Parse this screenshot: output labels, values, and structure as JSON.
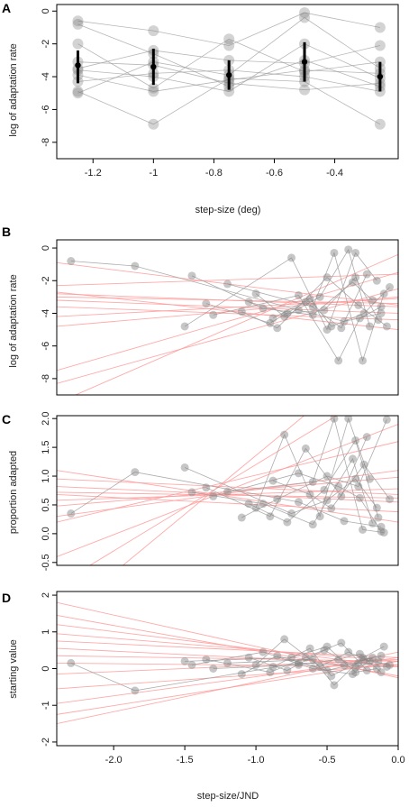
{
  "chart_data": [
    {
      "panel": "A",
      "type": "scatter",
      "xlabel": "step-size (deg)",
      "ylabel": "log of adaptation rate",
      "xlim": [
        -1.32,
        -0.19
      ],
      "ylim": [
        -9.0,
        0.4
      ],
      "xticks": [
        -1.2,
        -1.0,
        -0.8,
        -0.6,
        -0.4
      ],
      "yticks": [
        0,
        -2,
        -4,
        -6,
        -8
      ],
      "x_levels": [
        -1.25,
        -1.0,
        -0.75,
        -0.5,
        -0.25
      ],
      "subjects": [
        [
          -0.6,
          -1.2,
          -2.1,
          -0.1,
          -1.0
        ],
        [
          -3.5,
          -2.4,
          -3.0,
          -3.2,
          -2.1
        ],
        [
          -4.9,
          -6.9,
          -4.1,
          -4.3,
          -6.9
        ],
        [
          -2.0,
          -4.7,
          -1.7,
          -3.7,
          -3.1
        ],
        [
          -3.1,
          -3.3,
          -4.4,
          -4.8,
          -4.4
        ],
        [
          -4.3,
          -3.8,
          -3.6,
          -4.0,
          -4.9
        ],
        [
          -3.6,
          -4.0,
          -4.9,
          -2.0,
          -4.1
        ],
        [
          -5.0,
          -3.1,
          -3.9,
          -0.4,
          -3.5
        ],
        [
          -0.8,
          -2.6,
          -4.6,
          -3.0,
          -4.6
        ],
        [
          -3.9,
          -4.9,
          -4.2,
          -3.6,
          -3.8
        ]
      ],
      "means": [
        -3.3,
        -3.4,
        -3.9,
        -3.1,
        -4.0
      ],
      "ci": [
        [
          -4.4,
          -2.4
        ],
        [
          -4.5,
          -2.3
        ],
        [
          -4.8,
          -3.0
        ],
        [
          -4.3,
          -1.9
        ],
        [
          -4.9,
          -3.1
        ]
      ]
    },
    {
      "panel": "B",
      "type": "scatter",
      "xlabel": "",
      "ylabel": "log of adaptation rate",
      "xlim": [
        -2.4,
        0.0
      ],
      "ylim": [
        -9.0,
        0.5
      ],
      "yticks": [
        0,
        -2,
        -4,
        -6,
        -8
      ],
      "subjects": [
        {
          "x": [
            -2.3,
            -1.85,
            -0.7,
            -0.38,
            -0.12
          ],
          "y": [
            -0.8,
            -1.1,
            -3.8,
            -4.5,
            -4.0
          ]
        },
        {
          "x": [
            -1.5,
            -0.75,
            -0.5,
            -0.3,
            -0.15
          ],
          "y": [
            -4.8,
            -0.6,
            -5.0,
            -0.3,
            -2.0
          ]
        },
        {
          "x": [
            -1.2,
            -0.6,
            -0.45,
            -0.25,
            -0.1
          ],
          "y": [
            -2.2,
            -3.6,
            -0.3,
            -6.9,
            -2.8
          ]
        },
        {
          "x": [
            -1.0,
            -0.8,
            -0.55,
            -0.35,
            -0.2
          ],
          "y": [
            -2.8,
            -4.2,
            -3.0,
            -0.1,
            -4.8
          ]
        },
        {
          "x": [
            -1.35,
            -0.9,
            -0.65,
            -0.4,
            -0.22
          ],
          "y": [
            -3.4,
            -4.6,
            -3.3,
            -4.9,
            -1.6
          ]
        },
        {
          "x": [
            -1.1,
            -0.85,
            -0.5,
            -0.28,
            -0.08
          ],
          "y": [
            -3.9,
            -4.9,
            -1.8,
            -3.5,
            -4.8
          ]
        },
        {
          "x": [
            -1.45,
            -0.95,
            -0.6,
            -0.32,
            -0.18
          ],
          "y": [
            -1.7,
            -3.7,
            -4.1,
            -2.1,
            -3.2
          ]
        },
        {
          "x": [
            -1.3,
            -0.7,
            -0.42,
            -0.27,
            -0.12
          ],
          "y": [
            -4.1,
            -2.9,
            -6.9,
            -4.3,
            -3.6
          ]
        },
        {
          "x": [
            -1.05,
            -0.78,
            -0.52,
            -0.3,
            -0.14
          ],
          "y": [
            -3.3,
            -4.0,
            -3.8,
            -1.8,
            -4.4
          ]
        },
        {
          "x": [
            -0.88,
            -0.62,
            -0.47,
            -0.24,
            -0.06
          ],
          "y": [
            -4.3,
            -3.1,
            -4.8,
            -4.0,
            -2.4
          ]
        }
      ],
      "fit_lines": [
        [
          -0.9,
          -3.5
        ],
        [
          -2.3,
          -1.6
        ],
        [
          -2.8,
          -3.6
        ],
        [
          -3.2,
          -4.0
        ],
        [
          -3.0,
          -3.4
        ],
        [
          -4.2,
          -3.1
        ],
        [
          -2.7,
          -5.0
        ],
        [
          -7.5,
          -1.5
        ],
        [
          -9.5,
          -0.4
        ],
        [
          -8.3,
          -2.5
        ],
        [
          -4.8,
          -3.0
        ],
        [
          -3.6,
          -4.4
        ]
      ]
    },
    {
      "panel": "C",
      "type": "scatter",
      "xlabel": "",
      "ylabel": "proportion adapted",
      "xlim": [
        -2.4,
        0.0
      ],
      "ylim": [
        -0.55,
        2.05
      ],
      "yticks": [
        2.0,
        1.5,
        1.0,
        0.5,
        0.0,
        -0.5
      ],
      "ytick_labels": [
        "2.0",
        "1.5",
        "1.0",
        "0.5",
        "0.0",
        "-0.5"
      ],
      "subjects": [
        {
          "x": [
            -2.3,
            -1.85,
            -0.7,
            -0.38,
            -0.12
          ],
          "y": [
            0.35,
            1.07,
            0.55,
            0.22,
            0.12
          ]
        },
        {
          "x": [
            -1.5,
            -0.75,
            -0.5,
            -0.3,
            -0.15
          ],
          "y": [
            1.15,
            0.35,
            0.58,
            0.95,
            0.45
          ]
        },
        {
          "x": [
            -1.2,
            -0.6,
            -0.45,
            -0.25,
            -0.1
          ],
          "y": [
            0.73,
            0.9,
            2.0,
            0.07,
            0.02
          ]
        },
        {
          "x": [
            -1.0,
            -0.8,
            -0.55,
            -0.35,
            -0.2
          ],
          "y": [
            0.45,
            1.72,
            0.3,
            2.0,
            0.95
          ]
        },
        {
          "x": [
            -1.35,
            -0.9,
            -0.65,
            -0.4,
            -0.22
          ],
          "y": [
            0.8,
            0.3,
            1.48,
            0.65,
            1.68
          ]
        },
        {
          "x": [
            -1.1,
            -0.85,
            -0.5,
            -0.28,
            -0.08
          ],
          "y": [
            0.28,
            0.6,
            1.0,
            0.82,
            1.98
          ]
        },
        {
          "x": [
            -1.45,
            -0.95,
            -0.6,
            -0.32,
            -0.18
          ],
          "y": [
            0.72,
            0.52,
            0.16,
            1.3,
            0.18
          ]
        },
        {
          "x": [
            -1.3,
            -0.7,
            -0.42,
            -0.27,
            -0.12
          ],
          "y": [
            0.65,
            1.05,
            0.82,
            0.62,
            0.04
          ]
        },
        {
          "x": [
            -1.05,
            -0.78,
            -0.52,
            -0.3,
            -0.14
          ],
          "y": [
            0.52,
            0.2,
            0.76,
            1.62,
            0.28
          ]
        },
        {
          "x": [
            -0.88,
            -0.62,
            -0.47,
            -0.24,
            -0.06
          ],
          "y": [
            0.92,
            0.68,
            0.44,
            1.2,
            0.6
          ]
        }
      ],
      "fit_lines": [
        [
          0.95,
          0.68
        ],
        [
          0.82,
          0.55
        ],
        [
          0.58,
          0.78
        ],
        [
          0.68,
          0.38
        ],
        [
          0.48,
          0.98
        ],
        [
          0.72,
          0.62
        ],
        [
          0.2,
          1.6
        ],
        [
          -0.9,
          2.7
        ],
        [
          -1.5,
          3.4
        ],
        [
          -0.4,
          1.9
        ],
        [
          1.1,
          0.2
        ],
        [
          0.3,
          1.1
        ]
      ]
    },
    {
      "panel": "D",
      "type": "scatter",
      "xlabel": "step-size/JND",
      "ylabel": "starting value",
      "xlim": [
        -2.4,
        0.0
      ],
      "ylim": [
        -2.1,
        2.1
      ],
      "xticks": [
        -2.0,
        -1.5,
        -1.0,
        -0.5,
        0.0
      ],
      "xtick_labels": [
        "-2.0",
        "-1.5",
        "-1.0",
        "-0.5",
        "0.0"
      ],
      "yticks": [
        2,
        1,
        0,
        -1,
        -2
      ],
      "subjects": [
        {
          "x": [
            -2.3,
            -1.85,
            -0.7,
            -0.38,
            -0.12
          ],
          "y": [
            0.15,
            -0.6,
            0.15,
            0.1,
            0.35
          ]
        },
        {
          "x": [
            -1.5,
            -0.75,
            -0.5,
            -0.3,
            -0.15
          ],
          "y": [
            0.2,
            0.3,
            0.6,
            -0.1,
            0.0
          ]
        },
        {
          "x": [
            -1.2,
            -0.6,
            -0.45,
            -0.25,
            -0.1
          ],
          "y": [
            0.15,
            0.25,
            -0.45,
            0.3,
            0.6
          ]
        },
        {
          "x": [
            -1.0,
            -0.8,
            -0.55,
            -0.35,
            -0.2
          ],
          "y": [
            0.1,
            0.8,
            0.05,
            0.45,
            0.2
          ]
        },
        {
          "x": [
            -1.35,
            -0.9,
            -0.65,
            -0.4,
            -0.22
          ],
          "y": [
            0.25,
            -0.1,
            0.3,
            0.7,
            -0.05
          ]
        },
        {
          "x": [
            -1.1,
            -0.85,
            -0.5,
            -0.28,
            -0.08
          ],
          "y": [
            -0.15,
            0.35,
            -0.05,
            0.15,
            0.05
          ]
        },
        {
          "x": [
            -1.45,
            -0.95,
            -0.6,
            -0.32,
            -0.18
          ],
          "y": [
            0.1,
            0.45,
            0.0,
            -0.15,
            0.3
          ]
        },
        {
          "x": [
            -1.3,
            -0.7,
            -0.42,
            -0.27,
            -0.12
          ],
          "y": [
            0.0,
            0.1,
            0.25,
            0.4,
            -0.1
          ]
        },
        {
          "x": [
            -1.05,
            -0.78,
            -0.52,
            -0.3,
            -0.14
          ],
          "y": [
            0.3,
            -0.05,
            0.5,
            0.05,
            0.2
          ]
        },
        {
          "x": [
            -0.88,
            -0.62,
            -0.47,
            -0.24,
            -0.06
          ],
          "y": [
            0.05,
            0.55,
            -0.2,
            0.25,
            0.1
          ]
        }
      ],
      "fit_lines": [
        [
          1.8,
          -0.25
        ],
        [
          1.45,
          -0.2
        ],
        [
          1.2,
          0.05
        ],
        [
          0.95,
          0.2
        ],
        [
          0.75,
          0.3
        ],
        [
          0.55,
          0.1
        ],
        [
          0.35,
          0.2
        ],
        [
          0.15,
          0.05
        ],
        [
          -0.15,
          0.25
        ],
        [
          -0.55,
          0.1
        ],
        [
          -0.95,
          0.3
        ],
        [
          -1.25,
          0.2
        ],
        [
          -1.5,
          0.45
        ]
      ]
    }
  ],
  "style": {
    "point_color": "#808080",
    "line_color": "#999999",
    "fit_color": "#ff9a9a",
    "mean_color": "#000000"
  }
}
